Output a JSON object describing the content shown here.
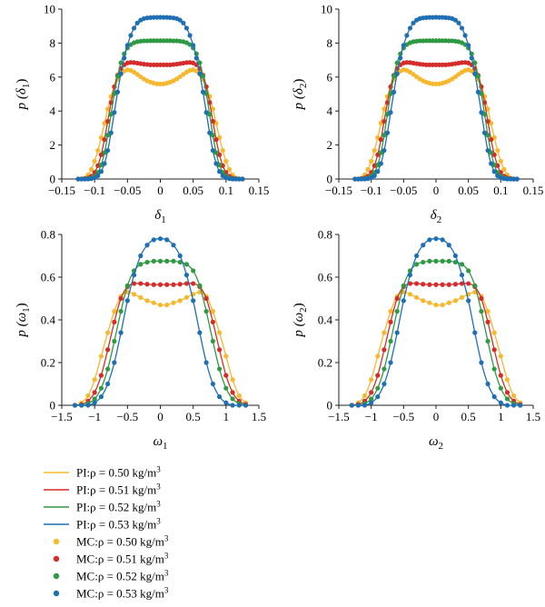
{
  "colors": {
    "c050": "#f5b82e",
    "c051": "#d62b2b",
    "c052": "#2e9a41",
    "c053": "#1f6fb4"
  },
  "legend": [
    {
      "kind": "line",
      "color_key": "c050",
      "label_pre": "PI:ρ = 0.50 kg/m",
      "label_sup": "3"
    },
    {
      "kind": "line",
      "color_key": "c051",
      "label_pre": "PI:ρ = 0.51 kg/m",
      "label_sup": "3"
    },
    {
      "kind": "line",
      "color_key": "c052",
      "label_pre": "PI:ρ = 0.52 kg/m",
      "label_sup": "3"
    },
    {
      "kind": "line",
      "color_key": "c053",
      "label_pre": "PI:ρ = 0.53 kg/m",
      "label_sup": "3"
    },
    {
      "kind": "marker",
      "color_key": "c050",
      "label_pre": "MC:ρ = 0.50 kg/m",
      "label_sup": "3"
    },
    {
      "kind": "marker",
      "color_key": "c051",
      "label_pre": "MC:ρ = 0.51 kg/m",
      "label_sup": "3"
    },
    {
      "kind": "marker",
      "color_key": "c052",
      "label_pre": "MC:ρ = 0.52 kg/m",
      "label_sup": "3"
    },
    {
      "kind": "marker",
      "color_key": "c053",
      "label_pre": "MC:ρ = 0.53 kg/m",
      "label_sup": "3"
    }
  ],
  "chart_data": [
    {
      "type": "line",
      "xlabel": {
        "sym": "δ",
        "sub": "1"
      },
      "ylabel": {
        "pre": "p (",
        "sym": "δ",
        "sub": "1",
        "post": ")"
      },
      "xlim": [
        -0.15,
        0.15
      ],
      "ylim": [
        0,
        10
      ],
      "xticks": [
        -0.15,
        -0.1,
        -0.05,
        0,
        0.05,
        0.1,
        0.15
      ],
      "xtick_labels": [
        "−0.15",
        "−0.1",
        "−0.05",
        "0",
        "0.05",
        "0.1",
        "0.15"
      ],
      "yticks": [
        0,
        2,
        4,
        6,
        8,
        10
      ],
      "ytick_labels": [
        "0",
        "2",
        "4",
        "6",
        "8",
        "10"
      ],
      "x": [
        -0.125,
        -0.12,
        -0.115,
        -0.11,
        -0.105,
        -0.1,
        -0.095,
        -0.09,
        -0.085,
        -0.08,
        -0.075,
        -0.07,
        -0.065,
        -0.06,
        -0.055,
        -0.05,
        -0.045,
        -0.04,
        -0.035,
        -0.03,
        -0.025,
        -0.02,
        -0.015,
        -0.01,
        -0.005,
        0,
        0.005,
        0.01,
        0.015,
        0.02,
        0.025,
        0.03,
        0.035,
        0.04,
        0.045,
        0.05,
        0.055,
        0.06,
        0.065,
        0.07,
        0.075,
        0.08,
        0.085,
        0.09,
        0.095,
        0.1,
        0.105,
        0.11,
        0.115,
        0.12,
        0.125
      ],
      "series": [
        {
          "color_key": "c050",
          "y": [
            0.0,
            0.01,
            0.06,
            0.24,
            0.57,
            1.05,
            1.68,
            2.44,
            3.28,
            4.12,
            4.86,
            5.44,
            5.86,
            6.16,
            6.35,
            6.43,
            6.39,
            6.29,
            6.16,
            6.02,
            5.89,
            5.78,
            5.7,
            5.64,
            5.6,
            5.59,
            5.6,
            5.64,
            5.7,
            5.78,
            5.89,
            6.02,
            6.16,
            6.29,
            6.39,
            6.43,
            6.35,
            6.16,
            5.86,
            5.44,
            4.86,
            4.12,
            3.28,
            2.44,
            1.68,
            1.05,
            0.57,
            0.24,
            0.06,
            0.01,
            0.0
          ]
        },
        {
          "color_key": "c051",
          "y": [
            0.0,
            0.0,
            0.02,
            0.06,
            0.17,
            0.39,
            0.79,
            1.43,
            2.32,
            3.4,
            4.5,
            5.43,
            6.11,
            6.51,
            6.72,
            6.83,
            6.86,
            6.85,
            6.82,
            6.79,
            6.76,
            6.74,
            6.72,
            6.72,
            6.72,
            6.72,
            6.72,
            6.72,
            6.72,
            6.74,
            6.76,
            6.79,
            6.82,
            6.85,
            6.86,
            6.83,
            6.72,
            6.51,
            6.11,
            5.43,
            4.5,
            3.4,
            2.32,
            1.43,
            0.79,
            0.39,
            0.17,
            0.06,
            0.02,
            0.0,
            0.0
          ]
        },
        {
          "color_key": "c052",
          "y": [
            0.0,
            0.0,
            0.0,
            0.02,
            0.06,
            0.17,
            0.39,
            0.83,
            1.55,
            2.58,
            3.81,
            5.02,
            6.05,
            6.84,
            7.37,
            7.71,
            7.91,
            8.02,
            8.08,
            8.11,
            8.13,
            8.13,
            8.14,
            8.14,
            8.14,
            8.14,
            8.14,
            8.14,
            8.14,
            8.13,
            8.13,
            8.11,
            8.08,
            8.02,
            7.91,
            7.71,
            7.37,
            6.84,
            6.05,
            5.02,
            3.81,
            2.58,
            1.55,
            0.83,
            0.39,
            0.17,
            0.06,
            0.02,
            0.0,
            0.0,
            0.0
          ]
        },
        {
          "color_key": "c053",
          "y": [
            0.0,
            0.0,
            0.0,
            0.0,
            0.02,
            0.07,
            0.19,
            0.44,
            0.91,
            1.68,
            2.72,
            3.92,
            5.12,
            6.2,
            7.12,
            7.87,
            8.45,
            8.88,
            9.18,
            9.35,
            9.44,
            9.48,
            9.5,
            9.51,
            9.51,
            9.52,
            9.51,
            9.51,
            9.5,
            9.48,
            9.44,
            9.35,
            9.18,
            8.88,
            8.45,
            7.87,
            7.12,
            6.2,
            5.12,
            3.92,
            2.72,
            1.68,
            0.91,
            0.44,
            0.19,
            0.07,
            0.02,
            0.0,
            0.0,
            0.0,
            0.0
          ]
        }
      ]
    },
    {
      "type": "line",
      "xlabel": {
        "sym": "δ",
        "sub": "2"
      },
      "ylabel": {
        "pre": "p (",
        "sym": "δ",
        "sub": "2",
        "post": ")"
      },
      "xlim": [
        -0.15,
        0.15
      ],
      "ylim": [
        0,
        10
      ],
      "xticks": [
        -0.15,
        -0.1,
        -0.05,
        0,
        0.05,
        0.1,
        0.15
      ],
      "xtick_labels": [
        "−0.15",
        "−0.1",
        "−0.05",
        "0",
        "0.05",
        "0.1",
        "0.15"
      ],
      "yticks": [
        0,
        2,
        4,
        6,
        8,
        10
      ],
      "ytick_labels": [
        "0",
        "2",
        "4",
        "6",
        "8",
        "10"
      ],
      "x": [
        -0.125,
        -0.12,
        -0.115,
        -0.11,
        -0.105,
        -0.1,
        -0.095,
        -0.09,
        -0.085,
        -0.08,
        -0.075,
        -0.07,
        -0.065,
        -0.06,
        -0.055,
        -0.05,
        -0.045,
        -0.04,
        -0.035,
        -0.03,
        -0.025,
        -0.02,
        -0.015,
        -0.01,
        -0.005,
        0,
        0.005,
        0.01,
        0.015,
        0.02,
        0.025,
        0.03,
        0.035,
        0.04,
        0.045,
        0.05,
        0.055,
        0.06,
        0.065,
        0.07,
        0.075,
        0.08,
        0.085,
        0.09,
        0.095,
        0.1,
        0.105,
        0.11,
        0.115,
        0.12,
        0.125
      ],
      "series": [
        {
          "color_key": "c050",
          "y": [
            0.0,
            0.01,
            0.06,
            0.24,
            0.57,
            1.05,
            1.68,
            2.44,
            3.28,
            4.12,
            4.86,
            5.44,
            5.86,
            6.16,
            6.35,
            6.43,
            6.39,
            6.29,
            6.16,
            6.02,
            5.89,
            5.78,
            5.7,
            5.64,
            5.6,
            5.59,
            5.6,
            5.64,
            5.7,
            5.78,
            5.89,
            6.02,
            6.16,
            6.29,
            6.39,
            6.43,
            6.35,
            6.16,
            5.86,
            5.44,
            4.86,
            4.12,
            3.28,
            2.44,
            1.68,
            1.05,
            0.57,
            0.24,
            0.06,
            0.01,
            0.0
          ]
        },
        {
          "color_key": "c051",
          "y": [
            0.0,
            0.0,
            0.02,
            0.06,
            0.17,
            0.39,
            0.79,
            1.43,
            2.32,
            3.4,
            4.5,
            5.43,
            6.11,
            6.51,
            6.72,
            6.83,
            6.86,
            6.85,
            6.82,
            6.79,
            6.76,
            6.74,
            6.72,
            6.72,
            6.72,
            6.72,
            6.72,
            6.72,
            6.72,
            6.74,
            6.76,
            6.79,
            6.82,
            6.85,
            6.86,
            6.83,
            6.72,
            6.51,
            6.11,
            5.43,
            4.5,
            3.4,
            2.32,
            1.43,
            0.79,
            0.39,
            0.17,
            0.06,
            0.02,
            0.0,
            0.0
          ]
        },
        {
          "color_key": "c052",
          "y": [
            0.0,
            0.0,
            0.0,
            0.02,
            0.06,
            0.17,
            0.39,
            0.83,
            1.55,
            2.58,
            3.81,
            5.02,
            6.05,
            6.84,
            7.37,
            7.71,
            7.91,
            8.02,
            8.08,
            8.11,
            8.13,
            8.13,
            8.14,
            8.14,
            8.14,
            8.14,
            8.14,
            8.14,
            8.14,
            8.13,
            8.13,
            8.11,
            8.08,
            8.02,
            7.91,
            7.71,
            7.37,
            6.84,
            6.05,
            5.02,
            3.81,
            2.58,
            1.55,
            0.83,
            0.39,
            0.17,
            0.06,
            0.02,
            0.0,
            0.0,
            0.0
          ]
        },
        {
          "color_key": "c053",
          "y": [
            0.0,
            0.0,
            0.0,
            0.0,
            0.02,
            0.07,
            0.19,
            0.44,
            0.91,
            1.68,
            2.72,
            3.92,
            5.12,
            6.2,
            7.12,
            7.87,
            8.45,
            8.88,
            9.18,
            9.35,
            9.44,
            9.48,
            9.5,
            9.51,
            9.51,
            9.52,
            9.51,
            9.51,
            9.5,
            9.48,
            9.44,
            9.35,
            9.18,
            8.88,
            8.45,
            7.87,
            7.12,
            6.2,
            5.12,
            3.92,
            2.72,
            1.68,
            0.91,
            0.44,
            0.19,
            0.07,
            0.02,
            0.0,
            0.0,
            0.0,
            0.0
          ]
        }
      ]
    },
    {
      "type": "line",
      "xlabel": {
        "sym": "ω",
        "sub": "1"
      },
      "ylabel": {
        "pre": "p (",
        "sym": "ω",
        "sub": "1",
        "post": ")"
      },
      "xlim": [
        -1.5,
        1.5
      ],
      "ylim": [
        0,
        0.8
      ],
      "xticks": [
        -1.5,
        -1,
        -0.5,
        0,
        0.5,
        1,
        1.5
      ],
      "xtick_labels": [
        "−1.5",
        "−1",
        "−0.5",
        "0",
        "0.5",
        "1",
        "1.5"
      ],
      "yticks": [
        0,
        0.2,
        0.4,
        0.6,
        0.8
      ],
      "ytick_labels": [
        "0",
        "0.2",
        "0.4",
        "0.6",
        "0.8"
      ],
      "x": [
        -1.3,
        -1.2,
        -1.1,
        -1.0,
        -0.9,
        -0.8,
        -0.7,
        -0.6,
        -0.5,
        -0.4,
        -0.3,
        -0.2,
        -0.1,
        0.0,
        0.1,
        0.2,
        0.3,
        0.4,
        0.5,
        0.6,
        0.7,
        0.8,
        0.9,
        1.0,
        1.1,
        1.2,
        1.3
      ],
      "series": [
        {
          "color_key": "c050",
          "y": [
            0.0,
            0.012,
            0.045,
            0.12,
            0.23,
            0.34,
            0.44,
            0.51,
            0.53,
            0.52,
            0.505,
            0.49,
            0.48,
            0.47,
            0.47,
            0.48,
            0.49,
            0.505,
            0.52,
            0.53,
            0.51,
            0.44,
            0.34,
            0.23,
            0.12,
            0.045,
            0.012
          ]
        },
        {
          "color_key": "c051",
          "y": [
            0.0,
            0.004,
            0.02,
            0.06,
            0.14,
            0.26,
            0.39,
            0.5,
            0.555,
            0.57,
            0.57,
            0.567,
            0.565,
            0.565,
            0.565,
            0.565,
            0.567,
            0.57,
            0.57,
            0.555,
            0.5,
            0.39,
            0.26,
            0.14,
            0.06,
            0.02,
            0.004
          ]
        },
        {
          "color_key": "c052",
          "y": [
            0.0,
            0.0,
            0.008,
            0.03,
            0.08,
            0.17,
            0.3,
            0.44,
            0.56,
            0.63,
            0.66,
            0.67,
            0.675,
            0.675,
            0.675,
            0.675,
            0.67,
            0.66,
            0.63,
            0.56,
            0.44,
            0.3,
            0.17,
            0.08,
            0.03,
            0.008,
            0.0
          ]
        },
        {
          "color_key": "c053",
          "y": [
            0.0,
            0.0,
            0.0,
            0.012,
            0.04,
            0.1,
            0.2,
            0.34,
            0.49,
            0.61,
            0.7,
            0.75,
            0.775,
            0.78,
            0.775,
            0.75,
            0.7,
            0.61,
            0.49,
            0.34,
            0.2,
            0.1,
            0.04,
            0.012,
            0.0,
            0.0,
            0.0
          ]
        }
      ]
    },
    {
      "type": "line",
      "xlabel": {
        "sym": "ω",
        "sub": "2"
      },
      "ylabel": {
        "pre": "p (",
        "sym": "ω",
        "sub": "2",
        "post": ")"
      },
      "xlim": [
        -1.5,
        1.5
      ],
      "ylim": [
        0,
        0.8
      ],
      "xticks": [
        -1.5,
        -1,
        -0.5,
        0,
        0.5,
        1,
        1.5
      ],
      "xtick_labels": [
        "−1.5",
        "−1",
        "−0.5",
        "0",
        "0.5",
        "1",
        "1.5"
      ],
      "yticks": [
        0,
        0.2,
        0.4,
        0.6,
        0.8
      ],
      "ytick_labels": [
        "0",
        "0.2",
        "0.4",
        "0.6",
        "0.8"
      ],
      "x": [
        -1.3,
        -1.2,
        -1.1,
        -1.0,
        -0.9,
        -0.8,
        -0.7,
        -0.6,
        -0.5,
        -0.4,
        -0.3,
        -0.2,
        -0.1,
        0.0,
        0.1,
        0.2,
        0.3,
        0.4,
        0.5,
        0.6,
        0.7,
        0.8,
        0.9,
        1.0,
        1.1,
        1.2,
        1.3
      ],
      "series": [
        {
          "color_key": "c050",
          "y": [
            0.0,
            0.012,
            0.045,
            0.12,
            0.23,
            0.34,
            0.44,
            0.51,
            0.53,
            0.52,
            0.505,
            0.49,
            0.48,
            0.47,
            0.47,
            0.48,
            0.49,
            0.505,
            0.52,
            0.53,
            0.51,
            0.44,
            0.34,
            0.23,
            0.12,
            0.045,
            0.012
          ]
        },
        {
          "color_key": "c051",
          "y": [
            0.0,
            0.004,
            0.02,
            0.06,
            0.14,
            0.26,
            0.39,
            0.5,
            0.555,
            0.57,
            0.57,
            0.567,
            0.565,
            0.565,
            0.565,
            0.565,
            0.567,
            0.57,
            0.57,
            0.555,
            0.5,
            0.39,
            0.26,
            0.14,
            0.06,
            0.02,
            0.004
          ]
        },
        {
          "color_key": "c052",
          "y": [
            0.0,
            0.0,
            0.008,
            0.03,
            0.08,
            0.17,
            0.3,
            0.44,
            0.56,
            0.63,
            0.66,
            0.67,
            0.675,
            0.675,
            0.675,
            0.675,
            0.67,
            0.66,
            0.63,
            0.56,
            0.44,
            0.3,
            0.17,
            0.08,
            0.03,
            0.008,
            0.0
          ]
        },
        {
          "color_key": "c053",
          "y": [
            0.0,
            0.0,
            0.0,
            0.012,
            0.04,
            0.1,
            0.2,
            0.34,
            0.49,
            0.61,
            0.7,
            0.75,
            0.775,
            0.78,
            0.775,
            0.75,
            0.7,
            0.61,
            0.49,
            0.34,
            0.2,
            0.1,
            0.04,
            0.012,
            0.0,
            0.0,
            0.0
          ]
        }
      ]
    }
  ]
}
